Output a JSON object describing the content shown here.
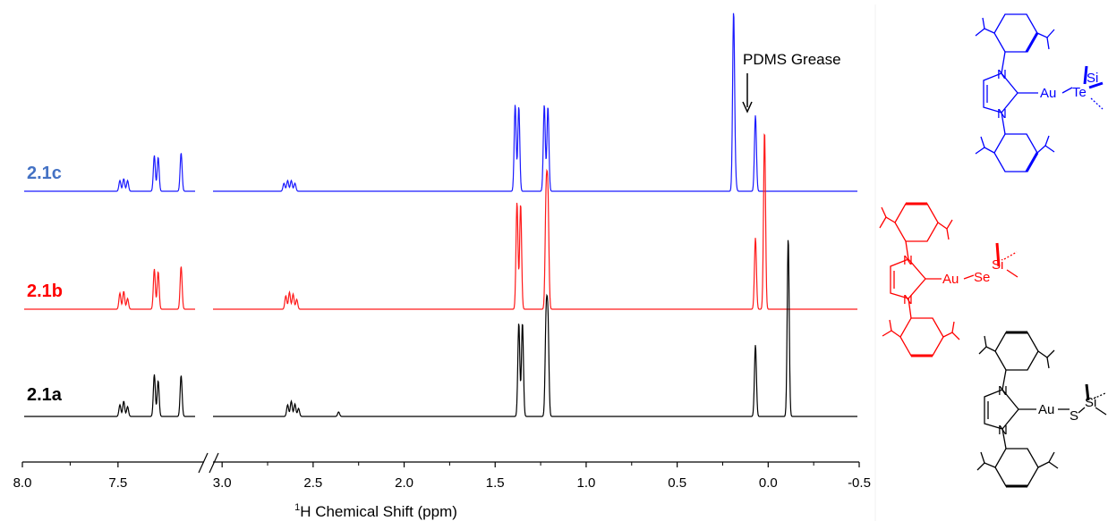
{
  "chart_data": {
    "type": "line",
    "xlabel": "Chemical Shift (ppm)",
    "xlabel_superscript": "1",
    "xlabel_nucleus": "H",
    "x_axis": {
      "reversed": true,
      "broken": true,
      "segments": [
        [
          8.0,
          7.05
        ],
        [
          3.05,
          -0.5
        ]
      ],
      "break_between": [
        7.05,
        3.05
      ],
      "tick_values": [
        8.0,
        7.5,
        3.0,
        2.5,
        2.0,
        1.5,
        1.0,
        0.5,
        0.0,
        -0.5
      ],
      "tick_labels": [
        "8.0",
        "7.5",
        "3.0",
        "2.5",
        "2.0",
        "1.5",
        "1.0",
        "0.5",
        "0.0",
        "-0.5"
      ]
    },
    "y_axis_shown": false,
    "grid": false,
    "legend": "none",
    "series": [
      {
        "name": "2.1c",
        "color": "#1a1aff",
        "label_color": "#4472c4",
        "peaks": [
          {
            "ppm": 7.49,
            "height": 0.12
          },
          {
            "ppm": 7.47,
            "height": 0.14
          },
          {
            "ppm": 7.45,
            "height": 0.12
          },
          {
            "ppm": 7.31,
            "height": 0.4
          },
          {
            "ppm": 7.29,
            "height": 0.38
          },
          {
            "ppm": 7.17,
            "height": 0.43
          },
          {
            "ppm": 2.66,
            "height": 0.09
          },
          {
            "ppm": 2.64,
            "height": 0.12
          },
          {
            "ppm": 2.62,
            "height": 0.12
          },
          {
            "ppm": 2.6,
            "height": 0.09
          },
          {
            "ppm": 1.39,
            "height": 0.97
          },
          {
            "ppm": 1.37,
            "height": 0.95
          },
          {
            "ppm": 1.23,
            "height": 0.97
          },
          {
            "ppm": 1.21,
            "height": 0.95
          },
          {
            "ppm": 0.19,
            "height": 2.0
          },
          {
            "ppm": 0.18,
            "height": 0.12
          },
          {
            "ppm": 0.07,
            "height": 0.85
          }
        ]
      },
      {
        "name": "2.1b",
        "color": "#ff1a1a",
        "label_color": "#ff0000",
        "peaks": [
          {
            "ppm": 7.49,
            "height": 0.18
          },
          {
            "ppm": 7.47,
            "height": 0.2
          },
          {
            "ppm": 7.45,
            "height": 0.12
          },
          {
            "ppm": 7.31,
            "height": 0.45
          },
          {
            "ppm": 7.29,
            "height": 0.42
          },
          {
            "ppm": 7.17,
            "height": 0.48
          },
          {
            "ppm": 2.65,
            "height": 0.15
          },
          {
            "ppm": 2.63,
            "height": 0.19
          },
          {
            "ppm": 2.61,
            "height": 0.17
          },
          {
            "ppm": 2.59,
            "height": 0.11
          },
          {
            "ppm": 1.38,
            "height": 1.2
          },
          {
            "ppm": 1.36,
            "height": 1.18
          },
          {
            "ppm": 1.22,
            "height": 1.2
          },
          {
            "ppm": 1.21,
            "height": 1.18
          },
          {
            "ppm": 0.07,
            "height": 0.8
          },
          {
            "ppm": 0.02,
            "height": 2.0
          }
        ]
      },
      {
        "name": "2.1a",
        "color": "#000000",
        "label_color": "#000000",
        "peaks": [
          {
            "ppm": 7.49,
            "height": 0.13
          },
          {
            "ppm": 7.47,
            "height": 0.17
          },
          {
            "ppm": 7.45,
            "height": 0.11
          },
          {
            "ppm": 7.31,
            "height": 0.47
          },
          {
            "ppm": 7.29,
            "height": 0.4
          },
          {
            "ppm": 7.17,
            "height": 0.46
          },
          {
            "ppm": 2.64,
            "height": 0.13
          },
          {
            "ppm": 2.62,
            "height": 0.17
          },
          {
            "ppm": 2.6,
            "height": 0.14
          },
          {
            "ppm": 2.58,
            "height": 0.09
          },
          {
            "ppm": 2.36,
            "height": 0.05
          },
          {
            "ppm": 1.37,
            "height": 1.05
          },
          {
            "ppm": 1.35,
            "height": 1.05
          },
          {
            "ppm": 1.22,
            "height": 1.05
          },
          {
            "ppm": 1.21,
            "height": 1.03
          },
          {
            "ppm": 0.07,
            "height": 0.8
          },
          {
            "ppm": -0.11,
            "height": 2.0
          }
        ]
      }
    ],
    "annotations": [
      {
        "text": "PDMS Grease",
        "ppm": 0.07,
        "arrow": "down"
      }
    ]
  },
  "structures": [
    {
      "name": "2.1c",
      "color": "#0000ff",
      "metal": "Au",
      "chalcogen": "Te",
      "silicon": "Si",
      "ring_atom": "N"
    },
    {
      "name": "2.1b",
      "color": "#ff0000",
      "metal": "Au",
      "chalcogen": "Se",
      "silicon": "Si",
      "ring_atom": "N"
    },
    {
      "name": "2.1a",
      "color": "#000000",
      "metal": "Au",
      "chalcogen": "S",
      "silicon": "Si",
      "ring_atom": "N"
    }
  ]
}
